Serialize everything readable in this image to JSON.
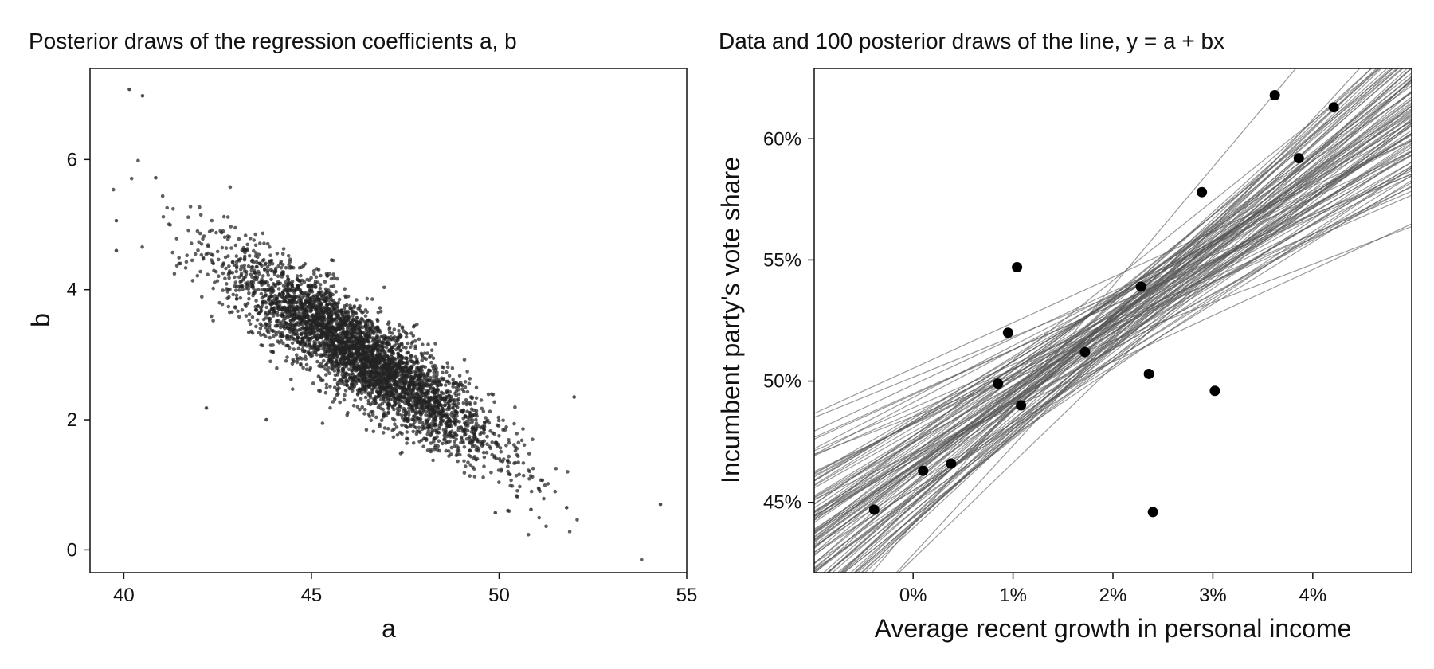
{
  "chart_data": [
    {
      "type": "scatter",
      "title": "Posterior draws of the regression coefficients a, b",
      "xlabel": "a",
      "ylabel": "b",
      "xlim": [
        39.1,
        55.0
      ],
      "ylim": [
        -0.35,
        7.4
      ],
      "xticks": [
        40,
        45,
        50,
        55
      ],
      "yticks": [
        0,
        2,
        4,
        6
      ],
      "xtick_labels": [
        "40",
        "45",
        "50",
        "55"
      ],
      "ytick_labels": [
        "0",
        "2",
        "4",
        "6"
      ],
      "n_draws": 4000,
      "posterior": {
        "a_mean": 46.3,
        "b_mean": 3.0,
        "a_sd": 1.75,
        "b_sd": 0.75,
        "correlation": -0.88
      },
      "outliers": [
        {
          "a": 40.15,
          "b": 7.08
        },
        {
          "a": 40.5,
          "b": 6.98
        },
        {
          "a": 39.8,
          "b": 5.06
        },
        {
          "a": 39.8,
          "b": 4.6
        },
        {
          "a": 40.85,
          "b": 5.72
        },
        {
          "a": 54.3,
          "b": 0.7
        },
        {
          "a": 51.8,
          "b": 0.65
        },
        {
          "a": 50.85,
          "b": 0.62
        },
        {
          "a": 49.9,
          "b": 0.57
        },
        {
          "a": 52.0,
          "b": 2.35
        },
        {
          "a": 42.2,
          "b": 2.18
        },
        {
          "a": 43.8,
          "b": 2.0
        }
      ],
      "grid": false,
      "color": "#222222"
    },
    {
      "type": "scatter",
      "title": "Data and 100 posterior draws of the line, y = a + bx",
      "xlabel": "Average recent growth in personal income",
      "ylabel": "Incumbent party's vote share",
      "xlim": [
        -0.99,
        4.99
      ],
      "ylim": [
        42.1,
        62.9
      ],
      "xticks": [
        0,
        1,
        2,
        3,
        4
      ],
      "yticks": [
        45,
        50,
        55,
        60
      ],
      "xtick_labels": [
        "0%",
        "1%",
        "2%",
        "3%",
        "4%"
      ],
      "ytick_labels": [
        "45%",
        "50%",
        "55%",
        "60%"
      ],
      "points": [
        {
          "x": -0.39,
          "y": 44.7
        },
        {
          "x": 0.1,
          "y": 46.3
        },
        {
          "x": 0.38,
          "y": 46.6
        },
        {
          "x": 0.85,
          "y": 49.9
        },
        {
          "x": 0.95,
          "y": 52.0
        },
        {
          "x": 1.04,
          "y": 54.7
        },
        {
          "x": 1.08,
          "y": 49.0
        },
        {
          "x": 1.72,
          "y": 51.2
        },
        {
          "x": 2.28,
          "y": 53.9
        },
        {
          "x": 2.36,
          "y": 50.3
        },
        {
          "x": 2.4,
          "y": 44.6
        },
        {
          "x": 2.89,
          "y": 57.8
        },
        {
          "x": 3.02,
          "y": 49.6
        },
        {
          "x": 3.62,
          "y": 61.8
        },
        {
          "x": 3.86,
          "y": 59.2
        },
        {
          "x": 4.21,
          "y": 61.3
        }
      ],
      "n_lines": 100,
      "line_color": "#555555",
      "point_color": "#000000",
      "grid": false
    }
  ]
}
